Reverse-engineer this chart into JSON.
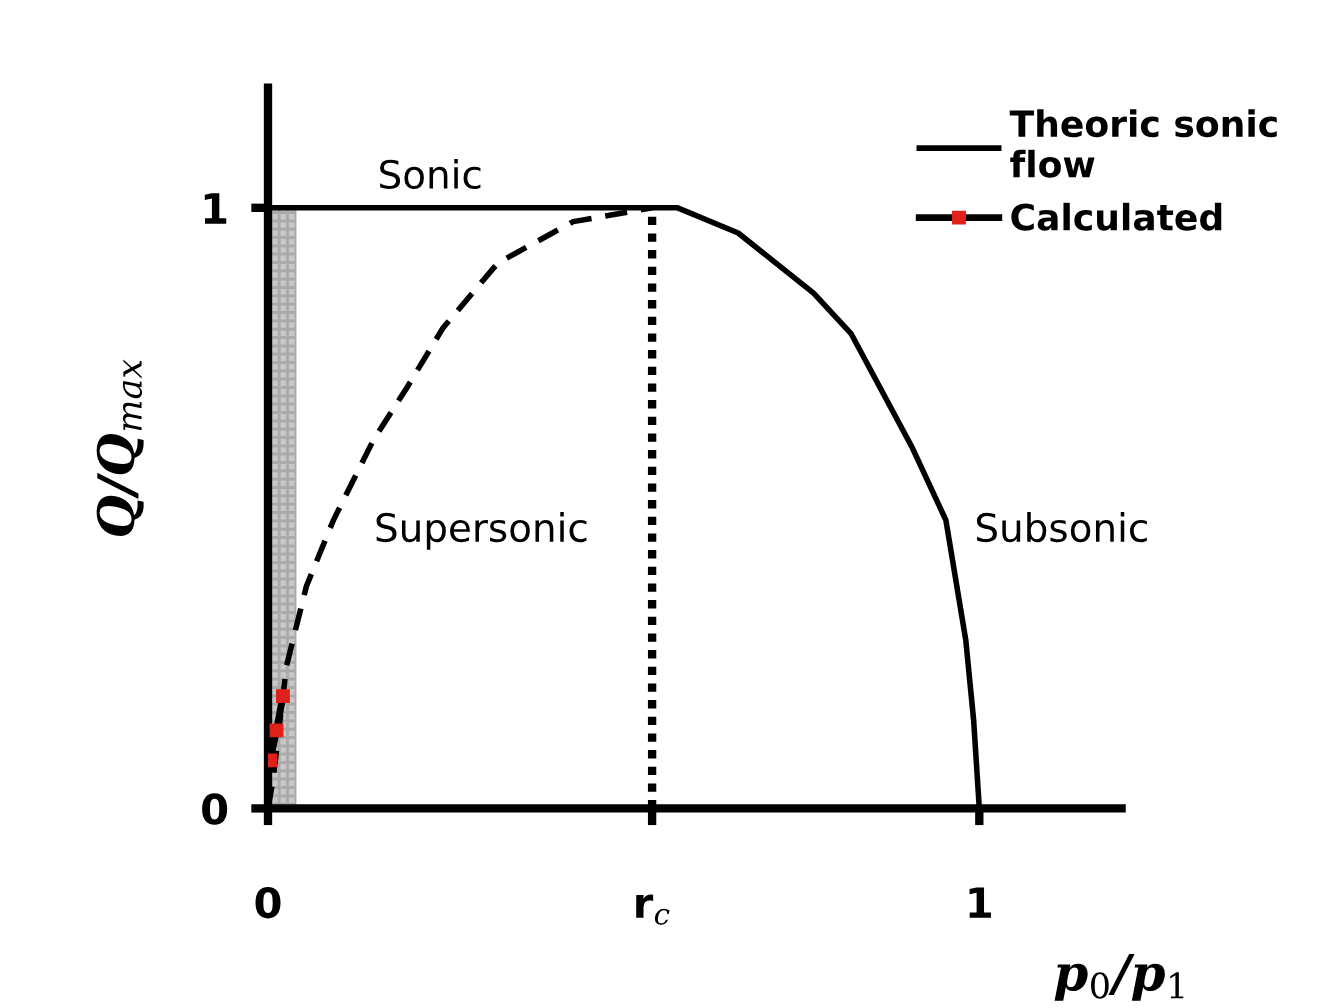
{
  "chart_data": {
    "type": "line",
    "xlabel": "p$_{0}$/p$_{1}$",
    "ylabel": "Q/Q$_{max}$",
    "xlim": [
      0,
      1.2
    ],
    "ylim": [
      0,
      1.2
    ],
    "xticks": [
      0,
      {
        "value": 0.54,
        "label": "r$_{c}$"
      },
      1
    ],
    "yticks": [
      0,
      1
    ],
    "grid": false,
    "legend": "top right",
    "series": [
      {
        "name": "Theoric sonic\nflow",
        "color": "#000000",
        "line_style": "solid",
        "marker": "none",
        "x": [
          0,
          0.54,
          0.576,
          0.661,
          0.767,
          0.82,
          0.906,
          0.953,
          0.981,
          0.992,
          1.0
        ],
        "values": [
          1,
          1,
          1,
          0.958,
          0.858,
          0.79,
          0.6,
          0.48,
          0.28,
          0.147,
          0
        ]
      },
      {
        "color": "#000000",
        "line_style": "dashed",
        "marker": "none",
        "x": [
          0,
          0.007,
          0.026,
          0.054,
          0.092,
          0.148,
          0.195,
          0.246,
          0.323,
          0.429,
          0.54
        ],
        "values": [
          0,
          0.047,
          0.237,
          0.37,
          0.48,
          0.613,
          0.7,
          0.8,
          0.908,
          0.977,
          1
        ]
      },
      {
        "name": "Calculated",
        "color": "#e0201b",
        "line_style": "solid",
        "marker": "square",
        "x": [
          0.003,
          0.012,
          0.021
        ],
        "values": [
          0.08,
          0.13,
          0.187
        ]
      }
    ],
    "bands": [
      {
        "axis": "x",
        "from": 0,
        "to": 0.04,
        "color": "#c8c8c8"
      }
    ],
    "ref_lines": [
      {
        "axis": "x",
        "value": 0.54,
        "line_style": "dotted",
        "color": "#000000"
      }
    ],
    "annotations": [
      "Sonic",
      "Supersonic",
      "Subsonic"
    ]
  }
}
